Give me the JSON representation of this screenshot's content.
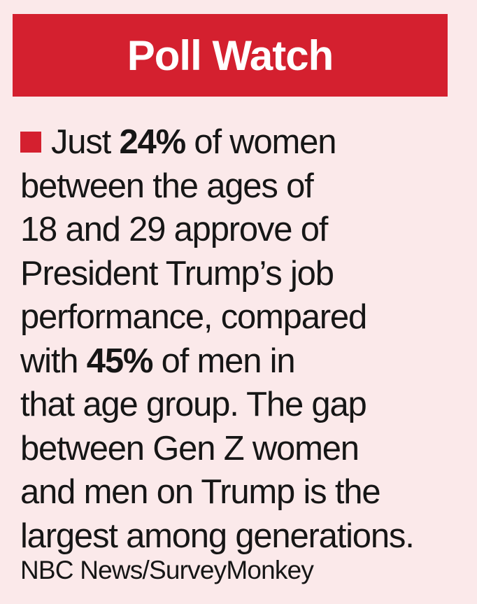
{
  "header": {
    "title": "Poll Watch"
  },
  "accent_color": "#d4202f",
  "background_color": "#fbe9ea",
  "body": {
    "line1_before": "Just",
    "stat_women": "24%",
    "line1_after": "of women",
    "line2": "between the ages of",
    "line3": "18 and 29 approve of",
    "line4": "President Trump’s job",
    "line5": "performance, compared",
    "line6_before": "with",
    "stat_men": "45%",
    "line6_after": "of men in",
    "line7": "that age group. The gap",
    "line8": "between Gen Z women",
    "line9": "and men on Trump is the",
    "line10": "largest among generations."
  },
  "source": "NBC News/SurveyMonkey"
}
